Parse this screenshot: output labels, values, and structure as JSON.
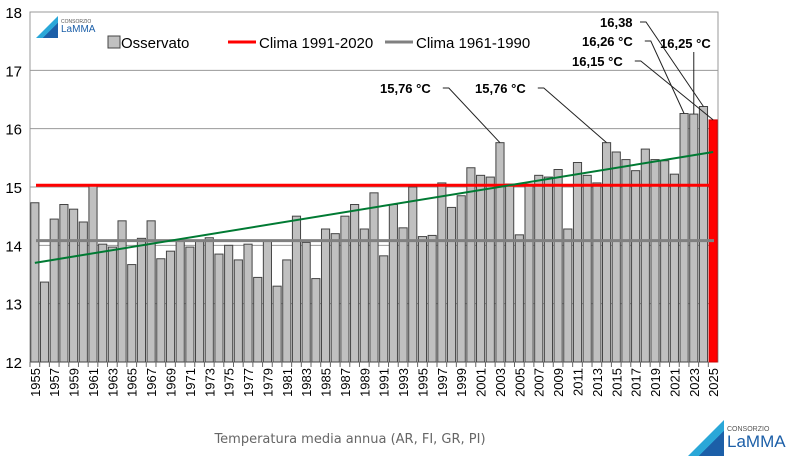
{
  "chart_data": {
    "type": "bar",
    "caption": "Temperatura media annua (AR, FI, GR, PI)",
    "ylim": [
      12,
      18
    ],
    "yticks": [
      12,
      13,
      14,
      15,
      16,
      17,
      18
    ],
    "grid": true,
    "legend_placement": "top",
    "x": [
      1955,
      1956,
      1957,
      1958,
      1959,
      1960,
      1961,
      1962,
      1963,
      1964,
      1965,
      1966,
      1967,
      1968,
      1969,
      1970,
      1971,
      1972,
      1973,
      1974,
      1975,
      1976,
      1977,
      1978,
      1979,
      1980,
      1981,
      1982,
      1983,
      1984,
      1985,
      1986,
      1987,
      1988,
      1989,
      1990,
      1991,
      1992,
      1993,
      1994,
      1995,
      1996,
      1997,
      1998,
      1999,
      2000,
      2001,
      2002,
      2003,
      2004,
      2005,
      2006,
      2007,
      2008,
      2009,
      2010,
      2011,
      2012,
      2013,
      2014,
      2015,
      2016,
      2017,
      2018,
      2019,
      2020,
      2021,
      2022,
      2023,
      2024,
      2025
    ],
    "series": [
      {
        "name": "Osservato",
        "color": "#c0c0c0",
        "highlight_color": "#ff0000",
        "values": [
          14.73,
          13.37,
          14.45,
          14.7,
          14.62,
          14.4,
          15.02,
          14.02,
          13.97,
          14.42,
          13.67,
          14.12,
          14.42,
          13.77,
          13.9,
          14.08,
          13.97,
          14.07,
          14.13,
          13.85,
          14.0,
          13.75,
          14.02,
          13.45,
          14.07,
          13.3,
          13.75,
          14.5,
          14.05,
          13.43,
          14.28,
          14.2,
          14.5,
          14.7,
          14.28,
          14.9,
          13.82,
          14.7,
          14.3,
          15.0,
          14.15,
          14.17,
          15.07,
          14.65,
          14.85,
          15.33,
          15.2,
          15.17,
          15.76,
          15.05,
          14.18,
          15.05,
          15.2,
          15.17,
          15.3,
          14.28,
          15.42,
          15.2,
          15.07,
          15.76,
          15.6,
          15.47,
          15.28,
          15.65,
          15.47,
          15.45,
          15.22,
          16.26,
          16.25,
          16.38,
          16.15
        ]
      },
      {
        "name": "Clima 1991-2020",
        "type": "hline",
        "value": 15.03,
        "color": "#ff0000"
      },
      {
        "name": "Clima 1961-1990",
        "type": "hline",
        "value": 14.08,
        "color": "#808080"
      },
      {
        "type": "trend",
        "from": [
          1955,
          13.7
        ],
        "to": [
          2025,
          15.6
        ],
        "color": "#007a33"
      }
    ],
    "annotations": [
      {
        "text": "15,76 °C",
        "year": 2003
      },
      {
        "text": "15,76 °C",
        "year": 2014
      },
      {
        "text": "16,38",
        "year": 2024
      },
      {
        "text": "16,26 °C",
        "year": 2022
      },
      {
        "text": "16,25 °C",
        "year": 2023
      },
      {
        "text": "16,15 °C",
        "year": 2025
      }
    ]
  },
  "logo": {
    "small": "CONSORZIO",
    "name": "LaMMA"
  }
}
